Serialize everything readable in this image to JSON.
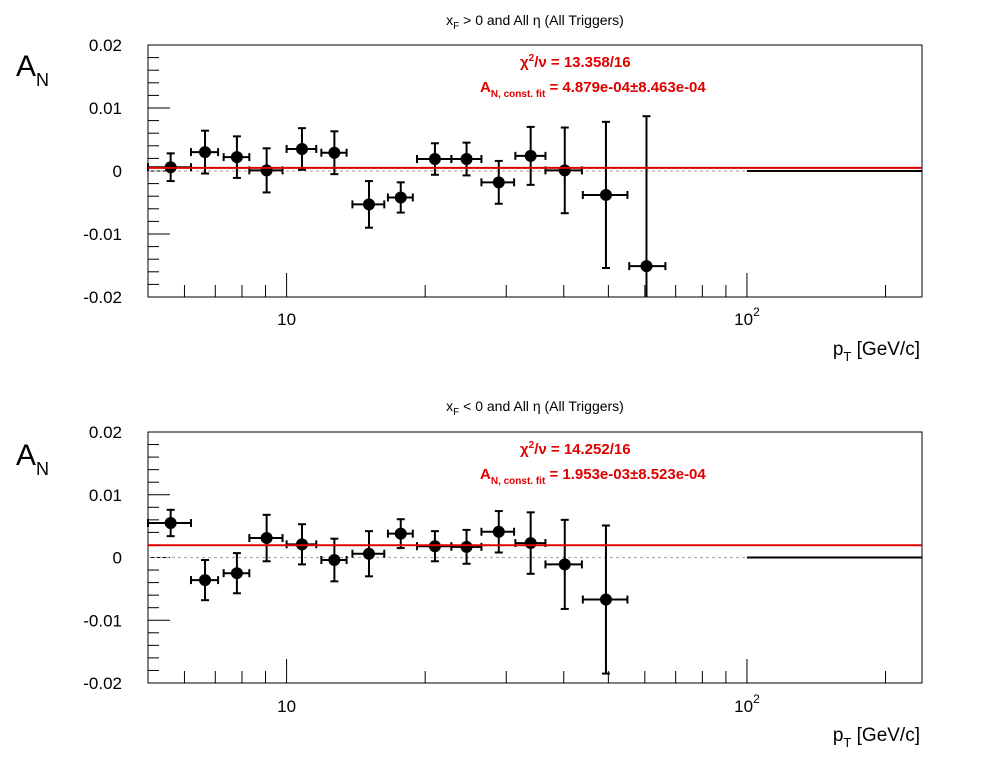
{
  "chart_data": [
    {
      "type": "scatter",
      "title_parts": [
        "x",
        "F",
        " > 0 and All ",
        "η",
        " (All Triggers)"
      ],
      "ylabel": {
        "main": "A",
        "sub": "N"
      },
      "xlabel": {
        "main": "p",
        "sub": "T",
        "rest": " [GeV/c]"
      },
      "xscale": "log",
      "xlim": [
        5,
        240
      ],
      "ylim": [
        -0.02,
        0.02
      ],
      "yticks": [
        "0.02",
        "0.01",
        "0",
        "-0.01",
        "-0.02"
      ],
      "xticks": [
        {
          "base": "10",
          "exp": ""
        },
        {
          "base": "10",
          "exp": "2"
        }
      ],
      "fit": {
        "chi2_label": [
          "χ",
          "2",
          "/ν",
          " = 13.358/16"
        ],
        "an_label": [
          "A",
          "N, const. fit",
          " = 4.879e-04",
          "±",
          "8.463e-04"
        ],
        "value": 0.0004879,
        "color": "#e00000"
      },
      "reference_line": {
        "y": 0,
        "color": "#b0b0b0"
      },
      "last_bin": {
        "x_low": 100,
        "x_high": 240,
        "y": 0
      },
      "points": [
        {
          "x": 5.6,
          "xlo": 5.0,
          "xhi": 6.2,
          "y": 0.0006,
          "err": 0.0022
        },
        {
          "x": 6.65,
          "xlo": 6.2,
          "xhi": 7.1,
          "y": 0.003,
          "err": 0.0034
        },
        {
          "x": 7.8,
          "xlo": 7.3,
          "xhi": 8.3,
          "y": 0.0022,
          "err": 0.0033
        },
        {
          "x": 9.05,
          "xlo": 8.3,
          "xhi": 9.8,
          "y": 0.0001,
          "err": 0.0035
        },
        {
          "x": 10.8,
          "xlo": 10.0,
          "xhi": 11.6,
          "y": 0.0035,
          "err": 0.0033
        },
        {
          "x": 12.7,
          "xlo": 11.9,
          "xhi": 13.5,
          "y": 0.0029,
          "err": 0.0034
        },
        {
          "x": 15.1,
          "xlo": 13.9,
          "xhi": 16.3,
          "y": -0.0053,
          "err": 0.0037
        },
        {
          "x": 17.7,
          "xlo": 16.6,
          "xhi": 18.8,
          "y": -0.0042,
          "err": 0.0024
        },
        {
          "x": 21.0,
          "xlo": 19.2,
          "xhi": 22.8,
          "y": 0.0019,
          "err": 0.0025
        },
        {
          "x": 24.6,
          "xlo": 22.8,
          "xhi": 26.5,
          "y": 0.0019,
          "err": 0.0026
        },
        {
          "x": 28.9,
          "xlo": 26.5,
          "xhi": 31.2,
          "y": -0.0018,
          "err": 0.0034
        },
        {
          "x": 33.9,
          "xlo": 31.4,
          "xhi": 36.5,
          "y": 0.0024,
          "err": 0.0046
        },
        {
          "x": 40.2,
          "xlo": 36.5,
          "xhi": 43.8,
          "y": 0.0001,
          "err": 0.0068
        },
        {
          "x": 49.4,
          "xlo": 44.0,
          "xhi": 55.0,
          "y": -0.0038,
          "err": 0.0116
        },
        {
          "x": 60.5,
          "xlo": 55.5,
          "xhi": 66.5,
          "y": -0.0151,
          "err": 0.0238
        }
      ]
    },
    {
      "type": "scatter",
      "title_parts": [
        "x",
        "F",
        " < 0 and All ",
        "η",
        " (All Triggers)"
      ],
      "ylabel": {
        "main": "A",
        "sub": "N"
      },
      "xlabel": {
        "main": "p",
        "sub": "T",
        "rest": " [GeV/c]"
      },
      "xscale": "log",
      "xlim": [
        5,
        240
      ],
      "ylim": [
        -0.02,
        0.02
      ],
      "yticks": [
        "0.02",
        "0.01",
        "0",
        "-0.01",
        "-0.02"
      ],
      "xticks": [
        {
          "base": "10",
          "exp": ""
        },
        {
          "base": "10",
          "exp": "2"
        }
      ],
      "fit": {
        "chi2_label": [
          "χ",
          "2",
          "/ν",
          " = 14.252/16"
        ],
        "an_label": [
          "A",
          "N, const. fit",
          " = 1.953e-03",
          "±",
          "8.523e-04"
        ],
        "value": 0.001953,
        "color": "#e00000"
      },
      "reference_line": {
        "y": 0,
        "color": "#b0b0b0"
      },
      "last_bin": {
        "x_low": 100,
        "x_high": 240,
        "y": 0
      },
      "points": [
        {
          "x": 5.6,
          "xlo": 5.0,
          "xhi": 6.2,
          "y": 0.0055,
          "err": 0.0021
        },
        {
          "x": 6.65,
          "xlo": 6.2,
          "xhi": 7.1,
          "y": -0.0036,
          "err": 0.0032
        },
        {
          "x": 7.8,
          "xlo": 7.3,
          "xhi": 8.3,
          "y": -0.0025,
          "err": 0.0032
        },
        {
          "x": 9.05,
          "xlo": 8.3,
          "xhi": 9.8,
          "y": 0.0031,
          "err": 0.0037
        },
        {
          "x": 10.8,
          "xlo": 10.0,
          "xhi": 11.6,
          "y": 0.0021,
          "err": 0.0032
        },
        {
          "x": 12.7,
          "xlo": 11.9,
          "xhi": 13.5,
          "y": -0.0004,
          "err": 0.0034
        },
        {
          "x": 15.1,
          "xlo": 13.9,
          "xhi": 16.3,
          "y": 0.0006,
          "err": 0.0036
        },
        {
          "x": 17.7,
          "xlo": 16.6,
          "xhi": 18.8,
          "y": 0.0038,
          "err": 0.0023
        },
        {
          "x": 21.0,
          "xlo": 19.2,
          "xhi": 22.8,
          "y": 0.0018,
          "err": 0.0024
        },
        {
          "x": 24.6,
          "xlo": 22.8,
          "xhi": 26.5,
          "y": 0.0017,
          "err": 0.0027
        },
        {
          "x": 28.9,
          "xlo": 26.5,
          "xhi": 31.2,
          "y": 0.0041,
          "err": 0.0033
        },
        {
          "x": 33.9,
          "xlo": 31.4,
          "xhi": 36.5,
          "y": 0.0023,
          "err": 0.0049
        },
        {
          "x": 40.2,
          "xlo": 36.5,
          "xhi": 43.8,
          "y": -0.0011,
          "err": 0.0071
        },
        {
          "x": 49.4,
          "xlo": 44.0,
          "xhi": 55.0,
          "y": -0.0067,
          "err": 0.0118
        }
      ]
    }
  ]
}
